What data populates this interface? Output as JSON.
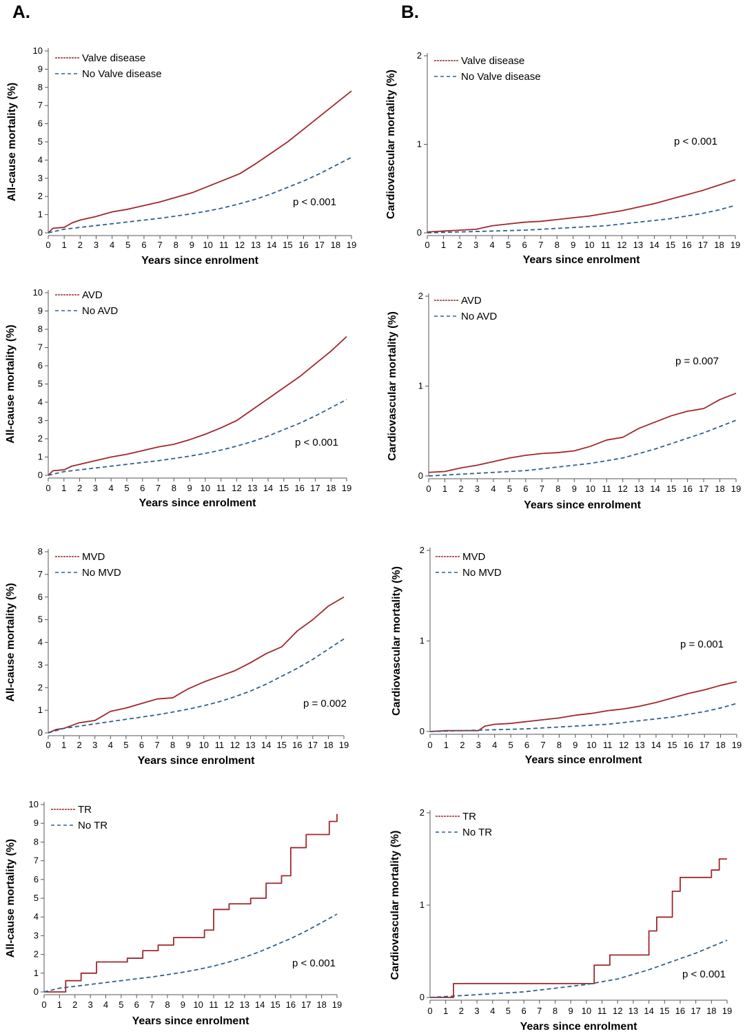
{
  "panel_labels": {
    "a": "A.",
    "b": "B."
  },
  "colors": {
    "disease": "#a0262c",
    "no_disease": "#2f5f8a",
    "axis": "#555555"
  },
  "chart_data": [
    {
      "type": "line",
      "panel": "A",
      "title": "",
      "xlabel": "Years since enrolment",
      "ylabel": "All-cause mortality (%)",
      "xlim": [
        0,
        19
      ],
      "ylim": [
        0,
        10
      ],
      "xticks": [
        0,
        1,
        2,
        3,
        4,
        5,
        6,
        7,
        8,
        9,
        10,
        11,
        12,
        13,
        14,
        15,
        16,
        17,
        18,
        19
      ],
      "yticks": [
        0,
        1,
        2,
        3,
        4,
        5,
        6,
        7,
        8,
        9,
        10
      ],
      "annotation": "p < 0.001",
      "series": [
        {
          "name": "Valve disease",
          "style": "solid",
          "x": [
            0,
            0.3,
            1,
            1.5,
            2,
            3,
            4,
            5,
            6,
            7,
            8,
            9,
            10,
            11,
            12,
            13,
            14,
            15,
            16,
            17,
            18,
            19
          ],
          "y": [
            0,
            0.25,
            0.3,
            0.55,
            0.7,
            0.9,
            1.15,
            1.3,
            1.5,
            1.7,
            1.95,
            2.2,
            2.55,
            2.9,
            3.25,
            3.8,
            4.4,
            5.0,
            5.7,
            6.4,
            7.1,
            7.8
          ]
        },
        {
          "name": "No Valve disease",
          "style": "dashed",
          "x": [
            0,
            1,
            2,
            3,
            4,
            5,
            6,
            7,
            8,
            9,
            10,
            11,
            12,
            13,
            14,
            15,
            16,
            17,
            18,
            19
          ],
          "y": [
            0,
            0.2,
            0.3,
            0.4,
            0.5,
            0.6,
            0.7,
            0.8,
            0.92,
            1.05,
            1.2,
            1.38,
            1.6,
            1.85,
            2.15,
            2.5,
            2.85,
            3.25,
            3.7,
            4.15
          ]
        }
      ]
    },
    {
      "type": "line",
      "panel": "B",
      "title": "",
      "xlabel": "Years since enrolment",
      "ylabel": "Cardiovascular mortality (%)",
      "xlim": [
        0,
        19
      ],
      "ylim": [
        0,
        2
      ],
      "xticks": [
        0,
        1,
        2,
        3,
        4,
        5,
        6,
        7,
        8,
        9,
        10,
        11,
        12,
        13,
        14,
        15,
        16,
        17,
        18,
        19
      ],
      "yticks": [
        0,
        1,
        2
      ],
      "annotation": "p < 0.001",
      "series": [
        {
          "name": "Valve disease",
          "style": "solid",
          "x": [
            0,
            1,
            2,
            3,
            4,
            5,
            6,
            7,
            8,
            9,
            10,
            11,
            12,
            13,
            14,
            15,
            16,
            17,
            18,
            19
          ],
          "y": [
            0.01,
            0.02,
            0.03,
            0.04,
            0.08,
            0.1,
            0.12,
            0.13,
            0.15,
            0.17,
            0.19,
            0.22,
            0.25,
            0.29,
            0.33,
            0.38,
            0.43,
            0.48,
            0.54,
            0.6
          ]
        },
        {
          "name": "No Valve disease",
          "style": "dashed",
          "x": [
            0,
            1,
            2,
            3,
            4,
            5,
            6,
            7,
            8,
            9,
            10,
            11,
            12,
            13,
            14,
            15,
            16,
            17,
            18,
            19
          ],
          "y": [
            0,
            0.005,
            0.01,
            0.015,
            0.02,
            0.025,
            0.03,
            0.04,
            0.05,
            0.06,
            0.07,
            0.08,
            0.1,
            0.12,
            0.14,
            0.16,
            0.19,
            0.22,
            0.26,
            0.31
          ]
        }
      ]
    },
    {
      "type": "line",
      "panel": "A",
      "title": "",
      "xlabel": "Years since enrolment",
      "ylabel": "All-cause mortality (%)",
      "xlim": [
        0,
        19
      ],
      "ylim": [
        0,
        10
      ],
      "xticks": [
        0,
        1,
        2,
        3,
        4,
        5,
        6,
        7,
        8,
        9,
        10,
        11,
        12,
        13,
        14,
        15,
        16,
        17,
        18,
        19
      ],
      "yticks": [
        0,
        1,
        2,
        3,
        4,
        5,
        6,
        7,
        8,
        9,
        10
      ],
      "annotation": "p < 0.001",
      "series": [
        {
          "name": "AVD",
          "style": "solid",
          "x": [
            0,
            0.3,
            1,
            1.5,
            2,
            3,
            4,
            5,
            6,
            7,
            8,
            9,
            10,
            11,
            12,
            13,
            14,
            15,
            16,
            17,
            18,
            19
          ],
          "y": [
            0,
            0.25,
            0.3,
            0.5,
            0.6,
            0.8,
            1.0,
            1.15,
            1.35,
            1.55,
            1.7,
            1.95,
            2.25,
            2.6,
            3.0,
            3.6,
            4.2,
            4.8,
            5.4,
            6.1,
            6.8,
            7.6
          ]
        },
        {
          "name": "No AVD",
          "style": "dashed",
          "x": [
            0,
            1,
            2,
            3,
            4,
            5,
            6,
            7,
            8,
            9,
            10,
            11,
            12,
            13,
            14,
            15,
            16,
            17,
            18,
            19
          ],
          "y": [
            0,
            0.2,
            0.3,
            0.4,
            0.5,
            0.6,
            0.7,
            0.8,
            0.92,
            1.05,
            1.2,
            1.38,
            1.6,
            1.85,
            2.15,
            2.5,
            2.85,
            3.25,
            3.7,
            4.15
          ]
        }
      ]
    },
    {
      "type": "line",
      "panel": "B",
      "title": "",
      "xlabel": "Years since enrolment",
      "ylabel": "Cardiovascular mortality (%)",
      "xlim": [
        0,
        19
      ],
      "ylim": [
        0,
        2
      ],
      "xticks": [
        0,
        1,
        2,
        3,
        4,
        5,
        6,
        7,
        8,
        9,
        10,
        11,
        12,
        13,
        14,
        15,
        16,
        17,
        18,
        19
      ],
      "yticks": [
        0,
        1,
        2
      ],
      "annotation": "p = 0.007",
      "series": [
        {
          "name": "AVD",
          "style": "solid",
          "x": [
            0,
            1,
            2,
            3,
            4,
            5,
            6,
            7,
            8,
            9,
            10,
            11,
            12,
            13,
            14,
            15,
            16,
            17,
            18,
            19
          ],
          "y": [
            0.04,
            0.05,
            0.09,
            0.12,
            0.16,
            0.2,
            0.23,
            0.25,
            0.26,
            0.28,
            0.33,
            0.4,
            0.43,
            0.53,
            0.6,
            0.67,
            0.72,
            0.75,
            0.85,
            0.92
          ]
        },
        {
          "name": "No AVD",
          "style": "dashed",
          "x": [
            0,
            1,
            2,
            3,
            4,
            5,
            6,
            7,
            8,
            9,
            10,
            11,
            12,
            13,
            14,
            15,
            16,
            17,
            18,
            19
          ],
          "y": [
            0,
            0.01,
            0.02,
            0.03,
            0.04,
            0.05,
            0.06,
            0.08,
            0.1,
            0.12,
            0.14,
            0.17,
            0.2,
            0.25,
            0.3,
            0.36,
            0.42,
            0.48,
            0.55,
            0.62
          ]
        }
      ]
    },
    {
      "type": "line",
      "panel": "A",
      "title": "",
      "xlabel": "Years since enrolment",
      "ylabel": "All-cause mortality (%)",
      "xlim": [
        0,
        19
      ],
      "ylim": [
        0,
        8
      ],
      "xticks": [
        0,
        1,
        2,
        3,
        4,
        5,
        6,
        7,
        8,
        9,
        10,
        11,
        12,
        13,
        14,
        15,
        16,
        17,
        18,
        19
      ],
      "yticks": [
        0,
        1,
        2,
        3,
        4,
        5,
        6,
        7,
        8
      ],
      "annotation": "p = 0.002",
      "series": [
        {
          "name": "MVD",
          "style": "solid",
          "x": [
            0,
            0.5,
            1,
            2,
            3,
            4,
            5,
            6,
            7,
            8,
            9,
            10,
            11,
            12,
            13,
            14,
            15,
            16,
            17,
            18,
            19
          ],
          "y": [
            0,
            0.15,
            0.2,
            0.45,
            0.55,
            0.95,
            1.1,
            1.3,
            1.5,
            1.55,
            1.95,
            2.25,
            2.5,
            2.75,
            3.1,
            3.5,
            3.8,
            4.5,
            5.0,
            5.6,
            6.0
          ]
        },
        {
          "name": "No MVD",
          "style": "dashed",
          "x": [
            0,
            1,
            2,
            3,
            4,
            5,
            6,
            7,
            8,
            9,
            10,
            11,
            12,
            13,
            14,
            15,
            16,
            17,
            18,
            19
          ],
          "y": [
            0,
            0.2,
            0.3,
            0.4,
            0.5,
            0.6,
            0.7,
            0.8,
            0.92,
            1.05,
            1.2,
            1.38,
            1.6,
            1.85,
            2.15,
            2.5,
            2.85,
            3.25,
            3.7,
            4.15
          ]
        }
      ]
    },
    {
      "type": "line",
      "panel": "B",
      "title": "",
      "xlabel": "Years since enrolment",
      "ylabel": "Cardiovascular mortality (%)",
      "xlim": [
        0,
        19
      ],
      "ylim": [
        0,
        2
      ],
      "xticks": [
        0,
        1,
        2,
        3,
        4,
        5,
        6,
        7,
        8,
        9,
        10,
        11,
        12,
        13,
        14,
        15,
        16,
        17,
        18,
        19
      ],
      "yticks": [
        0,
        1,
        2
      ],
      "annotation": "p = 0.001",
      "series": [
        {
          "name": "MVD",
          "style": "solid",
          "x": [
            0,
            1,
            2,
            3,
            3.4,
            4,
            5,
            6,
            7,
            8,
            9,
            10,
            11,
            12,
            13,
            14,
            15,
            16,
            17,
            18,
            19
          ],
          "y": [
            0,
            0.01,
            0.01,
            0.01,
            0.06,
            0.08,
            0.09,
            0.11,
            0.13,
            0.15,
            0.18,
            0.2,
            0.23,
            0.25,
            0.28,
            0.32,
            0.37,
            0.42,
            0.46,
            0.51,
            0.55
          ]
        },
        {
          "name": "No MVD",
          "style": "dashed",
          "x": [
            0,
            1,
            2,
            3,
            4,
            5,
            6,
            7,
            8,
            9,
            10,
            11,
            12,
            13,
            14,
            15,
            16,
            17,
            18,
            19
          ],
          "y": [
            0,
            0.005,
            0.01,
            0.015,
            0.02,
            0.025,
            0.03,
            0.04,
            0.05,
            0.06,
            0.07,
            0.08,
            0.1,
            0.12,
            0.14,
            0.16,
            0.19,
            0.22,
            0.26,
            0.31
          ]
        }
      ]
    },
    {
      "type": "line",
      "panel": "A",
      "title": "",
      "xlabel": "Years since enrolment",
      "ylabel": "All-cause mortality (%)",
      "xlim": [
        0,
        19
      ],
      "ylim": [
        0,
        10
      ],
      "xticks": [
        0,
        1,
        2,
        3,
        4,
        5,
        6,
        7,
        8,
        9,
        10,
        11,
        12,
        13,
        14,
        15,
        16,
        17,
        18,
        19
      ],
      "yticks": [
        0,
        1,
        2,
        3,
        4,
        5,
        6,
        7,
        8,
        9,
        10
      ],
      "annotation": "p < 0.001",
      "series": [
        {
          "name": "TR",
          "style": "step",
          "x": [
            0,
            1.4,
            2.4,
            3.4,
            5.4,
            6.4,
            7.4,
            8.4,
            10.4,
            11,
            12,
            13.4,
            14.4,
            15.4,
            16,
            17,
            18.5,
            19
          ],
          "y": [
            0,
            0.6,
            1.0,
            1.6,
            1.8,
            2.2,
            2.5,
            2.9,
            3.3,
            4.4,
            4.7,
            5.0,
            5.8,
            6.2,
            7.7,
            8.4,
            9.1,
            9.5
          ]
        },
        {
          "name": "No TR",
          "style": "dashed",
          "x": [
            0,
            1,
            2,
            3,
            4,
            5,
            6,
            7,
            8,
            9,
            10,
            11,
            12,
            13,
            14,
            15,
            16,
            17,
            18,
            19
          ],
          "y": [
            0,
            0.2,
            0.3,
            0.4,
            0.5,
            0.6,
            0.7,
            0.8,
            0.92,
            1.05,
            1.2,
            1.38,
            1.6,
            1.85,
            2.15,
            2.5,
            2.85,
            3.25,
            3.7,
            4.15
          ]
        }
      ]
    },
    {
      "type": "line",
      "panel": "B",
      "title": "",
      "xlabel": "Years since enrolment",
      "ylabel": "Cardiovascular mortality (%)",
      "xlim": [
        0,
        19
      ],
      "ylim": [
        0,
        2
      ],
      "xticks": [
        0,
        1,
        2,
        3,
        4,
        5,
        6,
        7,
        8,
        9,
        10,
        11,
        12,
        13,
        14,
        15,
        16,
        17,
        18,
        19
      ],
      "yticks": [
        0,
        1,
        2
      ],
      "annotation": "p < 0.001",
      "series": [
        {
          "name": "TR",
          "style": "step",
          "x": [
            0,
            1.5,
            10.5,
            11.5,
            14,
            14.5,
            15.5,
            16,
            18,
            18.5,
            19
          ],
          "y": [
            0,
            0.15,
            0.35,
            0.46,
            0.72,
            0.87,
            1.15,
            1.3,
            1.38,
            1.5,
            1.5
          ]
        },
        {
          "name": "No TR",
          "style": "dashed",
          "x": [
            0,
            1,
            2,
            3,
            4,
            5,
            6,
            7,
            8,
            9,
            10,
            11,
            12,
            13,
            14,
            15,
            16,
            17,
            18,
            19
          ],
          "y": [
            0,
            0.01,
            0.02,
            0.03,
            0.04,
            0.05,
            0.06,
            0.08,
            0.1,
            0.12,
            0.14,
            0.17,
            0.2,
            0.25,
            0.3,
            0.36,
            0.42,
            0.48,
            0.55,
            0.62
          ]
        }
      ]
    }
  ]
}
